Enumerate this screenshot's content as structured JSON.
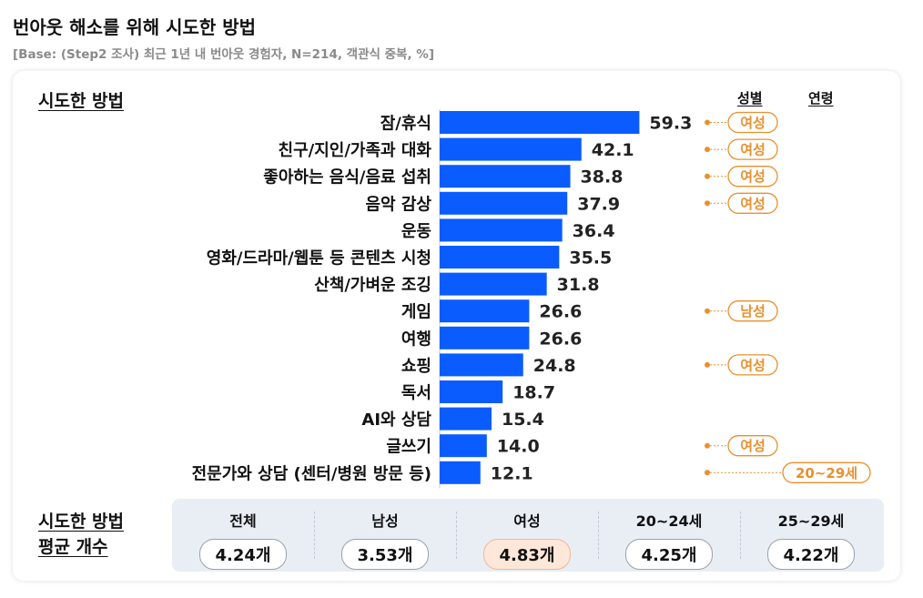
{
  "title": "번아웃 해소를 위해 시도한 방법",
  "subtitle": "[Base: (Step2 조사) 최근 1년 내 번아웃 경험자, N=214, 객관식 중복, %]",
  "chart_section_label": "시도한 방법",
  "column_headers": {
    "gender": "성별",
    "age": "연령"
  },
  "colors": {
    "bar": "#0a5cff",
    "tag": "#e8902e",
    "highlight_bg": "#fde7d8"
  },
  "chart_data": {
    "type": "bar",
    "orientation": "horizontal",
    "xlim": [
      0,
      100
    ],
    "categories": [
      "잠/휴식",
      "친구/지인/가족과 대화",
      "좋아하는 음식/음료 섭취",
      "음악 감상",
      "운동",
      "영화/드라마/웹툰 등 콘텐츠 시청",
      "산책/가벼운 조깅",
      "게임",
      "여행",
      "쇼핑",
      "독서",
      "AI와 상담",
      "글쓰기",
      "전문가와 상담 (센터/병원 방문 등)"
    ],
    "values": [
      59.3,
      42.1,
      38.8,
      37.9,
      36.4,
      35.5,
      31.8,
      26.6,
      26.6,
      24.8,
      18.7,
      15.4,
      14.0,
      12.1
    ],
    "value_labels": [
      "59.3",
      "42.1",
      "38.8",
      "37.9",
      "36.4",
      "35.5",
      "31.8",
      "26.6",
      "26.6",
      "24.8",
      "18.7",
      "15.4",
      "14.0",
      "12.1"
    ],
    "gender_tags": [
      "여성",
      "여성",
      "여성",
      "여성",
      "",
      "",
      "",
      "남성",
      "",
      "여성",
      "",
      "",
      "여성",
      ""
    ],
    "age_tags": [
      "",
      "",
      "",
      "",
      "",
      "",
      "",
      "",
      "",
      "",
      "",
      "",
      "",
      "20~29세"
    ]
  },
  "summary": {
    "label_line1": "시도한 방법",
    "label_line2": "평균 개수",
    "items": [
      {
        "label": "전체",
        "value": "4.24개",
        "highlight": false
      },
      {
        "label": "남성",
        "value": "3.53개",
        "highlight": false
      },
      {
        "label": "여성",
        "value": "4.83개",
        "highlight": true
      },
      {
        "label": "20~24세",
        "value": "4.25개",
        "highlight": false
      },
      {
        "label": "25~29세",
        "value": "4.22개",
        "highlight": false
      }
    ]
  }
}
